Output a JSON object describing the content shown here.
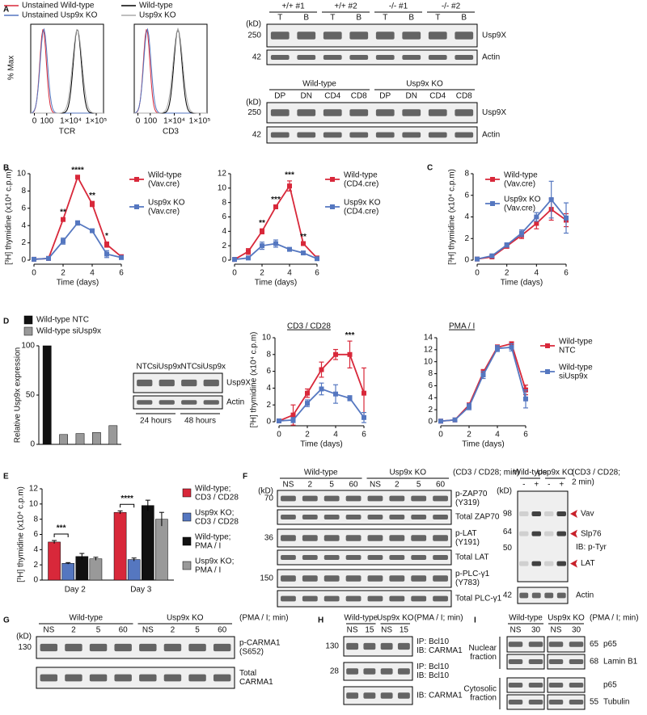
{
  "panel_labels": [
    "A",
    "B",
    "C",
    "D",
    "E",
    "F",
    "G",
    "H",
    "I"
  ],
  "flow": {
    "legend": [
      {
        "name": "Unstained Wild-type",
        "color": "#d8283a"
      },
      {
        "name": "Unstained Usp9x KO",
        "color": "#5577c0"
      },
      {
        "name": "Wild-type",
        "color": "#000000"
      },
      {
        "name": "Usp9x KO",
        "color": "#aaaaaa"
      }
    ],
    "y_label": "% Max",
    "x_ticks": [
      "0",
      "100",
      "1×10⁴",
      "1×10⁵"
    ],
    "panels": [
      {
        "x_label": "TCR"
      },
      {
        "x_label": "CD3"
      }
    ]
  },
  "chart_data": [
    {
      "type": "line",
      "x": [
        0,
        1,
        2,
        3,
        4,
        5,
        6
      ],
      "xlim": [
        0,
        6
      ],
      "xticks": [
        0,
        2,
        4,
        6
      ],
      "x_label": "Time (days)",
      "ylim": [
        0,
        10
      ],
      "yticks": [
        0,
        2,
        4,
        6,
        8,
        10
      ],
      "y_label": "[³H] thymidine (x10⁴ c.p.m)",
      "legend": "right",
      "series": [
        {
          "name": "Wild-type (Vav.cre)",
          "color": "#d8283a",
          "values": [
            0.1,
            0.2,
            4.7,
            9.6,
            6.5,
            1.8,
            0.4
          ],
          "errors": [
            0.05,
            0.1,
            0.15,
            0.15,
            0.3,
            0.3,
            0.1
          ]
        },
        {
          "name": "Usp9x KO (Vav.cre)",
          "color": "#5577c0",
          "values": [
            0.1,
            0.2,
            2.2,
            4.3,
            3.4,
            0.7,
            0.3
          ],
          "errors": [
            0.05,
            0.05,
            0.35,
            0.25,
            0.15,
            0.4,
            0.1
          ]
        }
      ],
      "annotations": [
        {
          "text": "**",
          "x": 2
        },
        {
          "text": "****",
          "x": 3
        },
        {
          "text": "**",
          "x": 4
        },
        {
          "text": "*",
          "x": 5
        }
      ]
    },
    {
      "type": "line",
      "x": [
        0,
        1,
        2,
        3,
        4,
        5,
        6
      ],
      "xlim": [
        0,
        6
      ],
      "xticks": [
        0,
        2,
        4,
        6
      ],
      "x_label": "Time (days)",
      "ylim": [
        0,
        12
      ],
      "yticks": [
        0,
        2,
        4,
        6,
        8,
        10,
        12
      ],
      "legend": "right",
      "series": [
        {
          "name": "Wild-type (CD4.cre)",
          "color": "#d8283a",
          "values": [
            0.1,
            1.2,
            4.0,
            7.4,
            10.3,
            2.3,
            0.3
          ],
          "errors": [
            0.05,
            0.4,
            0.35,
            0.2,
            0.7,
            0.15,
            0.1
          ]
        },
        {
          "name": "Usp9x KO (CD4.cre)",
          "color": "#5577c0",
          "values": [
            0.1,
            0.3,
            2.0,
            2.3,
            1.5,
            1.0,
            0.2
          ],
          "errors": [
            0.05,
            0.15,
            0.5,
            0.5,
            0.2,
            0.15,
            0.1
          ]
        }
      ],
      "annotations": [
        {
          "text": "**",
          "x": 2
        },
        {
          "text": "***",
          "x": 3
        },
        {
          "text": "***",
          "x": 4
        },
        {
          "text": "**",
          "x": 5
        }
      ]
    },
    {
      "type": "line",
      "x": [
        0,
        1,
        2,
        3,
        4,
        5,
        6
      ],
      "xlim": [
        0,
        6
      ],
      "xticks": [
        0,
        2,
        4,
        6
      ],
      "x_label": "Time (days)",
      "ylim": [
        0,
        8
      ],
      "yticks": [
        0,
        2,
        4,
        6,
        8
      ],
      "y_label": "[³H] thymidine (x10⁴ c.p.m)",
      "legend": "upper left",
      "series": [
        {
          "name": "Wild-type (Vav.cre)",
          "color": "#d8283a",
          "values": [
            0.1,
            0.3,
            1.3,
            2.3,
            3.4,
            4.7,
            3.7
          ],
          "errors": [
            0.05,
            0.1,
            0.2,
            0.3,
            0.5,
            1.0,
            0.6
          ]
        },
        {
          "name": "Usp9x KO (Vav.cre)",
          "color": "#5577c0",
          "values": [
            0.1,
            0.4,
            1.4,
            2.5,
            4.0,
            5.6,
            3.9
          ],
          "errors": [
            0.05,
            0.1,
            0.2,
            0.3,
            0.4,
            1.7,
            1.4
          ]
        }
      ]
    },
    {
      "type": "bar",
      "categories": [
        null,
        null,
        null,
        null,
        null
      ],
      "ylim": [
        0,
        100
      ],
      "yticks": [
        0,
        50,
        100
      ],
      "y_label": "Relative Usp9x expression",
      "legend": "top",
      "series": [
        {
          "name": "Wild-type NTC",
          "color": "#111111",
          "values": [
            100,
            null,
            null,
            null,
            null
          ]
        },
        {
          "name": "Wild-type siUsp9x",
          "color": "#999999",
          "values": [
            null,
            10,
            11,
            12,
            19
          ]
        }
      ]
    },
    {
      "type": "line",
      "title": "CD3 / CD28",
      "x": [
        0,
        1,
        2,
        3,
        4,
        5,
        6
      ],
      "xlim": [
        0,
        6
      ],
      "xticks": [
        0,
        2,
        4,
        6
      ],
      "x_label": "Time (days)",
      "ylim": [
        0,
        10
      ],
      "yticks": [
        0,
        2,
        4,
        6,
        8,
        10
      ],
      "y_label": "[³H] thymidine (x10⁴ c.p.m)",
      "series": [
        {
          "color": "#d8283a",
          "values": [
            0.1,
            0.8,
            3.4,
            6.2,
            8.0,
            8.0,
            3.4
          ],
          "errors": [
            0.1,
            1.2,
            0.5,
            0.9,
            0.6,
            1.6,
            3.0
          ]
        },
        {
          "color": "#5577c0",
          "values": [
            0.1,
            0.2,
            2.2,
            3.9,
            3.3,
            2.8,
            0.5
          ],
          "errors": [
            0.05,
            0.3,
            0.4,
            0.7,
            1.1,
            0.3,
            0.6
          ]
        }
      ],
      "annotations": [
        {
          "text": "***",
          "x": 5
        }
      ]
    },
    {
      "type": "line",
      "title": "PMA / I",
      "x": [
        0,
        1,
        2,
        3,
        4,
        5,
        6
      ],
      "xlim": [
        0,
        6
      ],
      "xticks": [
        0,
        2,
        4,
        6
      ],
      "x_label": "Time (days)",
      "ylim": [
        0,
        14
      ],
      "yticks": [
        0,
        2,
        4,
        6,
        8,
        10,
        12,
        14
      ],
      "legend": "right",
      "series": [
        {
          "name": "Wild-type NTC",
          "color": "#d8283a",
          "values": [
            0.1,
            0.3,
            2.8,
            8.2,
            12.4,
            13.0,
            5.3
          ],
          "errors": [
            0.05,
            0.2,
            0.3,
            0.5,
            0.4,
            0.3,
            0.8
          ]
        },
        {
          "name": "Wild-type siUsp9x",
          "color": "#5577c0",
          "values": [
            0.1,
            0.3,
            2.5,
            7.8,
            12.2,
            12.4,
            3.8
          ],
          "errors": [
            0.05,
            0.2,
            0.5,
            0.6,
            0.5,
            0.6,
            1.5
          ]
        }
      ]
    },
    {
      "type": "bar",
      "categories": [
        "Day 2",
        "Day 3"
      ],
      "ylim": [
        0,
        12
      ],
      "yticks": [
        0,
        2,
        4,
        6,
        8,
        10,
        12
      ],
      "y_label": "[³H] thymidine (x10⁴ c.p.m)",
      "legend": "right",
      "series": [
        {
          "name": "Wild-type; CD3 / CD28",
          "color": "#d8283a",
          "values": [
            5.0,
            8.9
          ],
          "errors": [
            0.2,
            0.2
          ]
        },
        {
          "name": "Usp9x KO; CD3 / CD28",
          "color": "#5577c0",
          "values": [
            2.2,
            2.7
          ],
          "errors": [
            0.1,
            0.2
          ]
        },
        {
          "name": "Wild-type; PMA / I",
          "color": "#111111",
          "values": [
            3.1,
            9.8
          ],
          "errors": [
            0.4,
            0.7
          ]
        },
        {
          "name": "Usp9x KO; PMA / I",
          "color": "#999999",
          "values": [
            2.8,
            8.0
          ],
          "errors": [
            0.2,
            0.9
          ]
        }
      ],
      "annotations": [
        {
          "text": "***",
          "category": "Day 2"
        },
        {
          "text": "****",
          "category": "Day 3"
        }
      ]
    }
  ],
  "blots": {
    "A_top": {
      "kd_unit": "(kD)",
      "groups": [
        "+/+ #1",
        "+/+ #2",
        "-/- #1",
        "-/- #2"
      ],
      "lanes": [
        "T",
        "B",
        "T",
        "B",
        "T",
        "B",
        "T",
        "B"
      ],
      "rows": [
        {
          "kd": "250",
          "label": [
            "Usp9X"
          ]
        },
        {
          "kd": "42",
          "label": [
            "Actin"
          ]
        }
      ]
    },
    "A_bottom": {
      "kd_unit": "(kD)",
      "groups": [
        "Wild-type",
        "Usp9x KO"
      ],
      "lanes": [
        "DP",
        "DN",
        "CD4",
        "CD8",
        "DP",
        "DN",
        "CD4",
        "CD8"
      ],
      "rows": [
        {
          "kd": "250",
          "label": [
            "Usp9X"
          ]
        },
        {
          "kd": "42",
          "label": [
            "Actin"
          ]
        }
      ]
    },
    "D": {
      "lanes": [
        "NTC",
        "siUsp9x",
        "NTC",
        "siUsp9x"
      ],
      "times": [
        "24 hours",
        "48 hours"
      ],
      "rows": [
        {
          "label": [
            "Usp9X"
          ]
        },
        {
          "label": [
            "Actin"
          ]
        }
      ]
    },
    "F": {
      "kd_unit": "(kD)",
      "groups": [
        "Wild-type",
        "Usp9x KO"
      ],
      "condition": [
        "(CD3 / CD28; min)"
      ],
      "lanes": [
        "NS",
        "2",
        "5",
        "60",
        "NS",
        "2",
        "5",
        "60"
      ],
      "rows": [
        {
          "kd": "70",
          "label": [
            "p-ZAP70",
            "(Y319)"
          ]
        },
        {
          "label": [
            "Total ZAP70"
          ]
        },
        {
          "kd": "36",
          "label": [
            "p-LAT",
            "(Y191)"
          ]
        },
        {
          "label": [
            "Total LAT"
          ]
        },
        {
          "kd": "150",
          "label": [
            "p-PLC-γ1",
            "(Y783)"
          ]
        },
        {
          "label": [
            "Total PLC-γ1"
          ]
        }
      ]
    },
    "F_ptyr": {
      "kd_unit": "(kD)",
      "groups": [
        "Wild-type",
        "Usp9x KO"
      ],
      "condition": [
        "(CD3 / CD28;",
        "2 min)"
      ],
      "lanes": [
        "-",
        "+",
        "-",
        "+"
      ],
      "markers": [
        "98",
        "64",
        "50"
      ],
      "bands": [
        "Vav",
        "Slp76",
        "LAT"
      ],
      "ib": "IB: p-Tyr",
      "rows": [
        {
          "kd": "42",
          "label": [
            "Actin"
          ]
        }
      ]
    },
    "G": {
      "kd_unit": "(kD)",
      "groups": [
        "Wild-type",
        "Usp9x KO"
      ],
      "condition": [
        "(PMA / I; min)"
      ],
      "lanes": [
        "NS",
        "2",
        "5",
        "60",
        "NS",
        "2",
        "5",
        "60"
      ],
      "rows": [
        {
          "kd": "130",
          "label": [
            "p-CARMA1",
            "(S652)"
          ]
        },
        {
          "label": [
            "Total",
            "CARMA1"
          ]
        }
      ]
    },
    "H": {
      "groups": [
        "Wild-type",
        "Usp9x KO"
      ],
      "condition": [
        "(PMA / I; min)"
      ],
      "lanes": [
        "NS",
        "15",
        "NS",
        "15"
      ],
      "rows": [
        {
          "kd": "130",
          "label": [
            "IP: Bcl10",
            "IB: CARMA1"
          ]
        },
        {
          "kd": "28",
          "label": [
            "IP: Bcl10",
            "IB: Bcl10"
          ]
        },
        {
          "label": [
            "IB: CARMA1"
          ]
        }
      ]
    },
    "I": {
      "groups": [
        "Wild-type",
        "Usp9x KO"
      ],
      "condition": [
        "(PMA / I; min)"
      ],
      "lanes": [
        "NS",
        "30",
        "NS",
        "30"
      ],
      "fractions": [
        {
          "name": [
            "Nuclear",
            "fraction"
          ]
        },
        {
          "name": [
            "Cytosolic",
            "fraction"
          ]
        }
      ],
      "rows": [
        {
          "kd": "65",
          "label": [
            "p65"
          ]
        },
        {
          "kd": "68",
          "label": [
            "Lamin B1"
          ]
        },
        {
          "label": [
            "p65"
          ]
        },
        {
          "kd": "55",
          "label": [
            "Tubulin"
          ]
        }
      ]
    }
  }
}
